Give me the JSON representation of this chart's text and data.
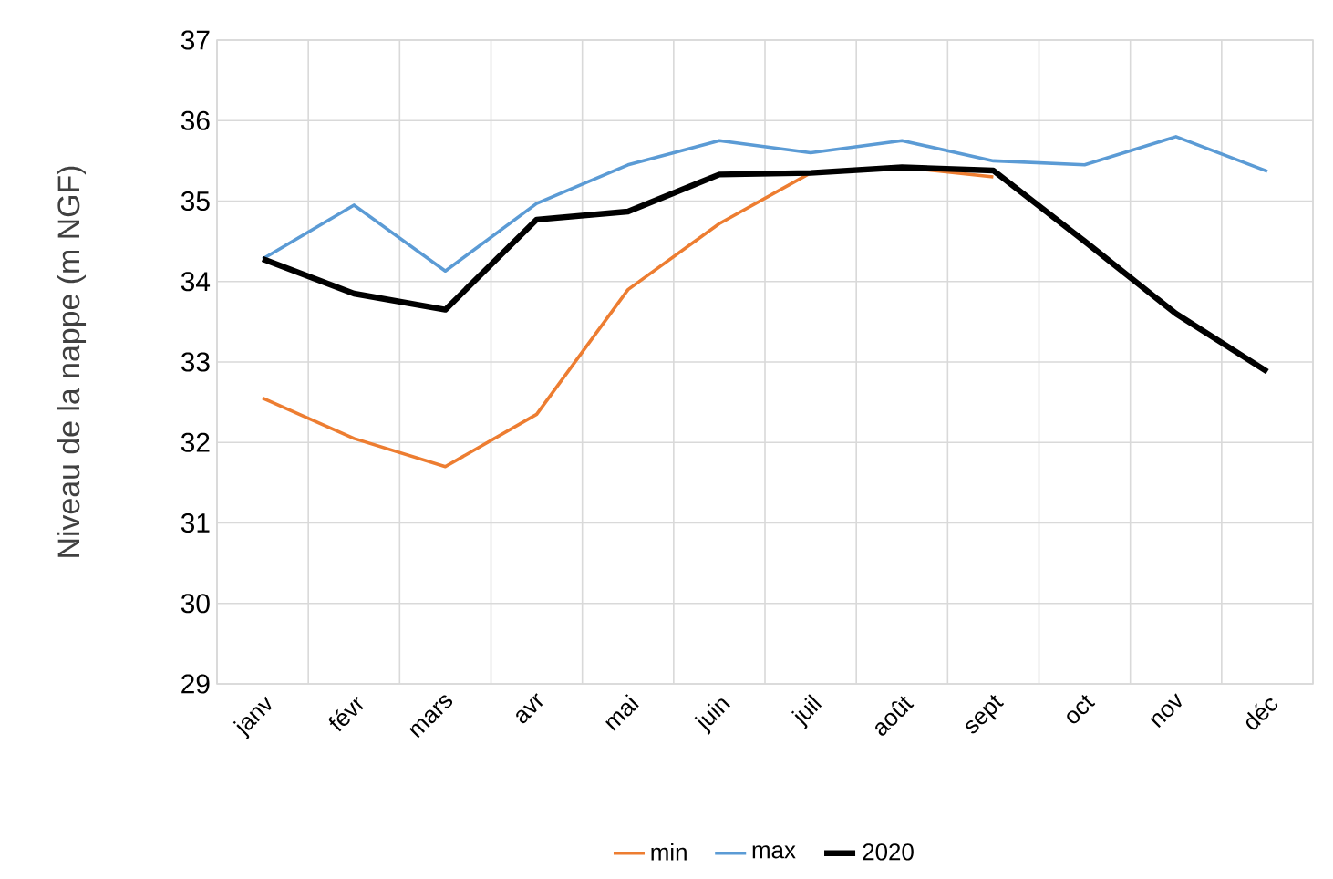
{
  "chart_data": {
    "type": "line",
    "ylabel": "Niveau de la nappe (m NGF)",
    "categories": [
      "janv",
      "févr",
      "mars",
      "avr",
      "mai",
      "juin",
      "juil",
      "août",
      "sept",
      "oct",
      "nov",
      "déc"
    ],
    "series": [
      {
        "name": "min",
        "color": "#ed7d31",
        "values": [
          32.55,
          32.05,
          31.7,
          32.35,
          33.9,
          34.72,
          35.35,
          35.42,
          35.3,
          null,
          null,
          null
        ]
      },
      {
        "name": "max",
        "color": "#5b9bd5",
        "values": [
          34.28,
          34.95,
          34.13,
          34.97,
          35.45,
          35.75,
          35.6,
          35.75,
          35.5,
          35.45,
          35.8,
          35.37
        ]
      },
      {
        "name": "2020",
        "color": "#000000",
        "values": [
          34.28,
          33.85,
          33.65,
          34.77,
          34.87,
          35.33,
          35.35,
          35.42,
          35.38,
          34.5,
          33.6,
          32.88
        ]
      }
    ],
    "ylim": [
      29,
      37
    ],
    "yticks": [
      29,
      30,
      31,
      32,
      33,
      34,
      35,
      36,
      37
    ],
    "grid": true,
    "legend": "bottom",
    "marker": "none",
    "line_style": "solid"
  }
}
